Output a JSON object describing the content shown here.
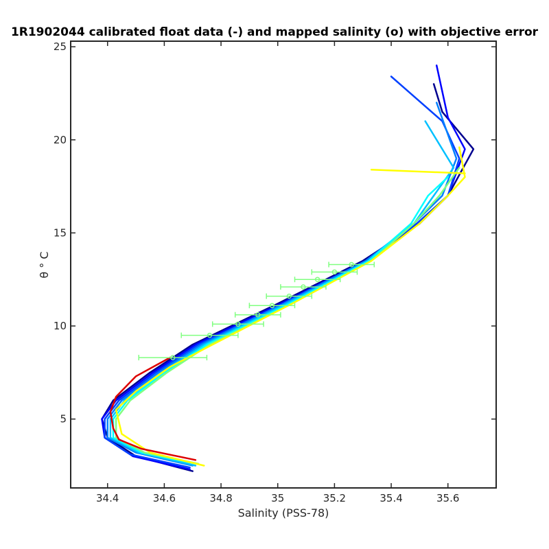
{
  "chart_data": {
    "type": "line",
    "title": "1R1902044 calibrated float data (-) and mapped salinity (o) with objective error",
    "xlabel": "Salinity (PSS-78)",
    "ylabel": "θ ° C",
    "xlim": [
      34.27,
      35.77
    ],
    "ylim": [
      1.3,
      25.3
    ],
    "xticks": [
      "34.4",
      "34.6",
      "34.8",
      "35",
      "35.2",
      "35.4",
      "35.6"
    ],
    "yticks": [
      "5",
      "10",
      "15",
      "20",
      "25"
    ],
    "grid": false,
    "legend": "none",
    "colormap": [
      "#00008f",
      "#0000ff",
      "#0080ff",
      "#00ffff",
      "#80ff80",
      "#ffff00"
    ],
    "series": [
      {
        "color": "#00008f",
        "x": [
          34.7,
          34.5,
          34.4,
          34.38,
          34.42,
          34.55,
          34.7,
          35.0,
          35.3,
          35.5,
          35.6,
          35.69,
          35.58,
          35.55
        ],
        "y": [
          2.2,
          3.0,
          4.0,
          5.0,
          6.0,
          7.5,
          9.0,
          11.2,
          13.5,
          15.5,
          17.0,
          19.5,
          21.5,
          23.0
        ]
      },
      {
        "color": "#0000ff",
        "x": [
          34.69,
          34.49,
          34.39,
          34.38,
          34.43,
          34.56,
          34.71,
          35.01,
          35.31,
          35.5,
          35.6,
          35.66,
          35.6,
          35.56
        ],
        "y": [
          2.3,
          3.0,
          4.0,
          5.0,
          6.0,
          7.5,
          9.0,
          11.2,
          13.5,
          15.5,
          17.0,
          19.5,
          21.2,
          24.0
        ]
      },
      {
        "color": "#0040ff",
        "x": [
          34.69,
          34.48,
          34.39,
          34.39,
          34.44,
          34.57,
          34.72,
          35.02,
          35.31,
          35.49,
          35.6,
          35.64,
          35.58,
          35.4
        ],
        "y": [
          2.4,
          3.1,
          4.0,
          5.0,
          6.0,
          7.5,
          9.0,
          11.2,
          13.5,
          15.5,
          17.0,
          19.0,
          21.0,
          23.4
        ]
      },
      {
        "color": "#0080ff",
        "x": [
          34.7,
          34.5,
          34.4,
          34.4,
          34.45,
          34.58,
          34.73,
          35.02,
          35.31,
          35.48,
          35.58,
          35.63,
          35.56
        ],
        "y": [
          2.5,
          3.2,
          4.0,
          5.0,
          6.0,
          7.5,
          9.0,
          11.2,
          13.5,
          15.5,
          17.0,
          19.0,
          22.0
        ]
      },
      {
        "color": "#00c0ff",
        "x": [
          34.71,
          34.51,
          34.41,
          34.41,
          34.46,
          34.59,
          34.74,
          35.03,
          35.32,
          35.48,
          35.55,
          35.62,
          35.52
        ],
        "y": [
          2.5,
          3.2,
          4.0,
          5.0,
          6.0,
          7.5,
          9.0,
          11.2,
          13.5,
          15.5,
          17.0,
          18.5,
          21.0
        ]
      },
      {
        "color": "#00ffff",
        "x": [
          34.71,
          34.52,
          34.42,
          34.42,
          34.47,
          34.6,
          34.75,
          35.04,
          35.32,
          35.47,
          35.53,
          35.6
        ],
        "y": [
          2.6,
          3.2,
          4.0,
          5.0,
          6.0,
          7.5,
          9.0,
          11.2,
          13.5,
          15.5,
          17.0,
          18.0
        ]
      },
      {
        "color": "#80ff80",
        "x": [
          34.72,
          34.53,
          34.43,
          34.43,
          34.48,
          34.61,
          34.76,
          35.05,
          35.33,
          35.48,
          35.57,
          35.64
        ],
        "y": [
          2.6,
          3.2,
          4.0,
          5.0,
          6.0,
          7.5,
          9.0,
          11.2,
          13.5,
          15.5,
          17.0,
          18.5
        ]
      },
      {
        "color": "#ffff00",
        "x": [
          34.74,
          34.55,
          34.45,
          34.43,
          34.5,
          34.62,
          34.77,
          35.05,
          35.33,
          35.5,
          35.6,
          35.66,
          35.64
        ],
        "y": [
          2.5,
          3.2,
          4.2,
          5.5,
          6.5,
          7.8,
          9.0,
          11.2,
          13.5,
          15.5,
          17.0,
          18.0,
          19.6
        ]
      },
      {
        "color": "#ffff00",
        "x": [
          35.33,
          35.66
        ],
        "y": [
          18.4,
          18.2
        ]
      },
      {
        "color": "#dd0000",
        "x": [
          34.71,
          34.52,
          34.44,
          34.42,
          34.41,
          34.43,
          34.5,
          34.62
        ],
        "y": [
          2.8,
          3.4,
          3.9,
          4.5,
          5.4,
          6.2,
          7.3,
          8.3
        ]
      }
    ],
    "mapped_salinity": {
      "color": "#80ff80",
      "x": [
        34.63,
        34.76,
        34.86,
        34.93,
        34.98,
        35.04,
        35.09,
        35.14,
        35.2,
        35.26
      ],
      "y": [
        8.3,
        9.5,
        10.1,
        10.6,
        11.1,
        11.6,
        12.1,
        12.5,
        12.9,
        13.3
      ],
      "error": [
        0.12,
        0.1,
        0.09,
        0.08,
        0.08,
        0.08,
        0.08,
        0.08,
        0.08,
        0.08
      ]
    }
  }
}
